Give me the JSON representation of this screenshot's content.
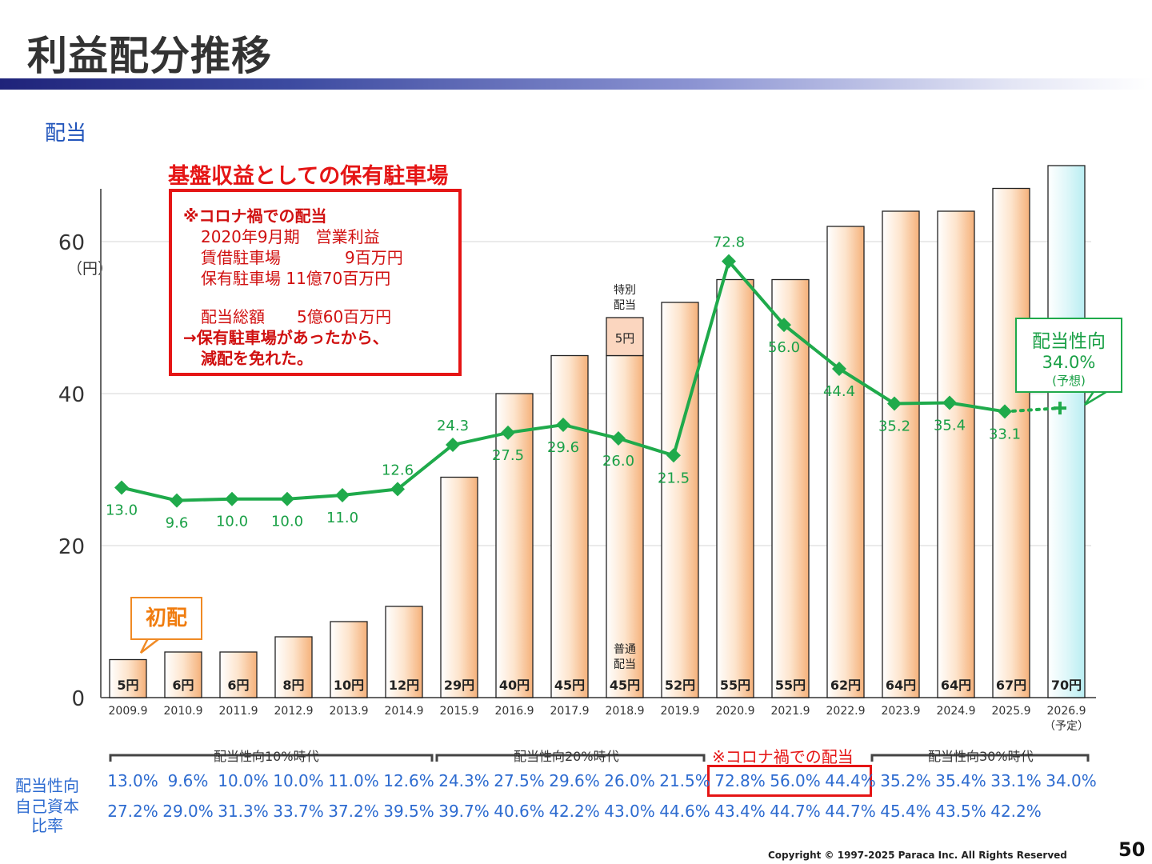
{
  "slide_title": "利益配分推移",
  "section_label": "配当",
  "page_number": "50",
  "copyright": "Copyright © 1997-2025 Paraca Inc.  All Rights Reserved",
  "colors": {
    "bar_fill": "#fde4cc",
    "bar_forecast_fill": "#dff7f9",
    "line": "#1faa4b",
    "accent_red": "#e51515",
    "accent_blue": "#2d6bd0",
    "accent_orange": "#f08a24"
  },
  "chart_data": {
    "type": "bar",
    "categories": [
      "2009.9",
      "2010.9",
      "2011.9",
      "2012.9",
      "2013.9",
      "2014.9",
      "2015.9",
      "2016.9",
      "2017.9",
      "2018.9",
      "2019.9",
      "2020.9",
      "2021.9",
      "2022.9",
      "2023.9",
      "2024.9",
      "2025.9",
      "2026.9"
    ],
    "forecast_category_note": "（予定）",
    "ylim": [
      0,
      70
    ],
    "y_ticks": [
      "0",
      "20",
      "40",
      "60"
    ],
    "y_unit": "（円）",
    "series": [
      {
        "values": [
          5,
          6,
          6,
          8,
          10,
          12,
          29,
          40,
          45,
          45,
          52,
          55,
          55,
          62,
          64,
          64,
          67,
          70
        ]
      },
      {
        "values": [
          0,
          0,
          0,
          0,
          0,
          0,
          0,
          0,
          0,
          5,
          0,
          0,
          0,
          0,
          0,
          0,
          0,
          0
        ]
      }
    ],
    "bar_labels": [
      "5円",
      "6円",
      "6円",
      "8円",
      "10円",
      "12円",
      "29円",
      "40円",
      "45円",
      "45円",
      "52円",
      "55円",
      "55円",
      "62円",
      "64円",
      "64円",
      "67円",
      "70円"
    ],
    "special_label": "5円",
    "special_note": "特別\n配当",
    "regular_note": "普通\n配当",
    "payout_line": {
      "values": [
        13.0,
        9.6,
        10.0,
        10.0,
        11.0,
        12.6,
        24.3,
        27.5,
        29.6,
        26.0,
        21.5,
        72.8,
        56.0,
        44.4,
        35.2,
        35.4,
        33.1,
        34.0
      ],
      "labels": [
        "13.0",
        "9.6",
        "10.0",
        "10.0",
        "11.0",
        "12.6",
        "24.3",
        "27.5",
        "29.6",
        "26.0",
        "21.5",
        "72.8",
        "56.0",
        "44.4",
        "35.2",
        "35.4",
        "33.1",
        ""
      ]
    }
  },
  "callouts": {
    "corona_title": "基盤収益としての保有駐車場",
    "corona_box": {
      "line1": "※コロナ禍での配当",
      "line2": "2020年9月期　営業利益",
      "line3": "賃借駐車場　　　　9百万円",
      "line4": "保有駐車場 11億70百万円",
      "line5": "配当総額　　5億60百万円",
      "line6": "→保有駐車場があったから、",
      "line7": "減配を免れた。"
    },
    "ratio_title": "配当性向",
    "ratio_value": "34.0%",
    "ratio_note": "(予想)",
    "first_dividend": "初配"
  },
  "table": {
    "era_labels": [
      "配当性向10%時代",
      "配当性向20%時代",
      "※コロナ禍での配当",
      "配当性向30%時代"
    ],
    "row1_label": "配当性向",
    "row1_values": [
      "13.0%",
      "9.6%",
      "10.0%",
      "10.0%",
      "11.0%",
      "12.6%",
      "24.3%",
      "27.5%",
      "29.6%",
      "26.0%",
      "21.5%",
      "72.8%",
      "56.0%",
      "44.4%",
      "35.2%",
      "35.4%",
      "33.1%",
      "34.0%"
    ],
    "row2_label": "自己資本\n比率",
    "row2_values": [
      "27.2%",
      "29.0%",
      "31.3%",
      "33.7%",
      "37.2%",
      "39.5%",
      "39.7%",
      "40.6%",
      "42.2%",
      "43.0%",
      "44.6%",
      "43.4%",
      "44.7%",
      "44.7%",
      "45.4%",
      "43.5%",
      "42.2%"
    ]
  }
}
